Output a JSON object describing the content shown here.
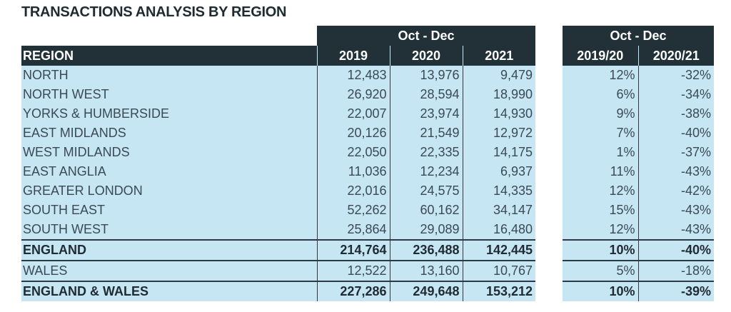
{
  "title": "TRANSACTIONS ANALYSIS BY REGION",
  "left_table": {
    "group_header": "Oct - Dec",
    "col_region": "REGION",
    "years": [
      "2019",
      "2020",
      "2021"
    ]
  },
  "right_table": {
    "group_header": "Oct - Dec",
    "cols": [
      "2019/20",
      "2020/21"
    ]
  },
  "rows": [
    {
      "region": "NORTH",
      "y2019": "12,483",
      "y2020": "13,976",
      "y2021": "9,479",
      "c1": "12%",
      "c2": "-32%"
    },
    {
      "region": "NORTH WEST",
      "y2019": "26,920",
      "y2020": "28,594",
      "y2021": "18,990",
      "c1": "6%",
      "c2": "-34%"
    },
    {
      "region": "YORKS & HUMBERSIDE",
      "y2019": "22,007",
      "y2020": "23,974",
      "y2021": "14,930",
      "c1": "9%",
      "c2": "-38%"
    },
    {
      "region": "EAST MIDLANDS",
      "y2019": "20,126",
      "y2020": "21,549",
      "y2021": "12,972",
      "c1": "7%",
      "c2": "-40%"
    },
    {
      "region": "WEST MIDLANDS",
      "y2019": "22,050",
      "y2020": "22,335",
      "y2021": "14,175",
      "c1": "1%",
      "c2": "-37%"
    },
    {
      "region": "EAST ANGLIA",
      "y2019": "11,036",
      "y2020": "12,234",
      "y2021": "6,937",
      "c1": "11%",
      "c2": "-43%"
    },
    {
      "region": "GREATER LONDON",
      "y2019": "22,016",
      "y2020": "24,575",
      "y2021": "14,335",
      "c1": "12%",
      "c2": "-42%"
    },
    {
      "region": "SOUTH EAST",
      "y2019": "52,262",
      "y2020": "60,162",
      "y2021": "34,147",
      "c1": "15%",
      "c2": "-43%"
    },
    {
      "region": "SOUTH WEST",
      "y2019": "25,864",
      "y2020": "29,089",
      "y2021": "16,480",
      "c1": "12%",
      "c2": "-43%"
    },
    {
      "region": "ENGLAND",
      "y2019": "214,764",
      "y2020": "236,488",
      "y2021": "142,445",
      "c1": "10%",
      "c2": "-40%"
    },
    {
      "region": "WALES",
      "y2019": "12,522",
      "y2020": "13,160",
      "y2021": "10,767",
      "c1": "5%",
      "c2": "-18%"
    },
    {
      "region": "ENGLAND & WALES",
      "y2019": "227,286",
      "y2020": "249,648",
      "y2021": "153,212",
      "c1": "10%",
      "c2": "-39%"
    }
  ],
  "colors": {
    "header_bg": "#223038",
    "row_bg": "#c7e6f3",
    "text": "#3a4a55"
  }
}
